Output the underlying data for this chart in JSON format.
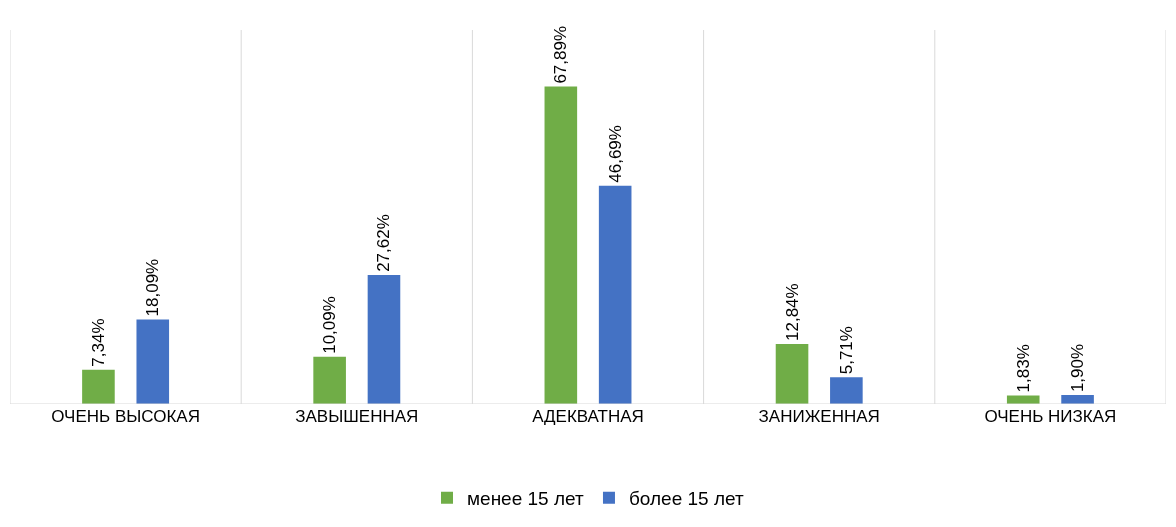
{
  "chart_data": {
    "type": "bar",
    "categories": [
      "ОЧЕНЬ ВЫСОКАЯ",
      "ЗАВЫШЕННАЯ",
      "АДЕКВАТНАЯ",
      "ЗАНИЖЕННАЯ",
      "ОЧЕНЬ НИЗКАЯ"
    ],
    "series": [
      {
        "name": "менее 15 лет",
        "color": "#70ad47",
        "values": [
          7.34,
          10.09,
          67.89,
          12.84,
          1.83
        ],
        "value_labels": [
          "7,34%",
          "10,09%",
          "67,89%",
          "12,84%",
          "1,83%"
        ]
      },
      {
        "name": "более 15 лет",
        "color": "#4472c4",
        "values": [
          18.09,
          27.62,
          46.69,
          5.71,
          1.9
        ],
        "value_labels": [
          "18,09%",
          "27,62%",
          "46,69%",
          "5,71%",
          "1,90%"
        ]
      }
    ],
    "ylim": [
      0,
      80
    ],
    "grid": "x",
    "legend": "bottom",
    "tick_labels": "x"
  }
}
